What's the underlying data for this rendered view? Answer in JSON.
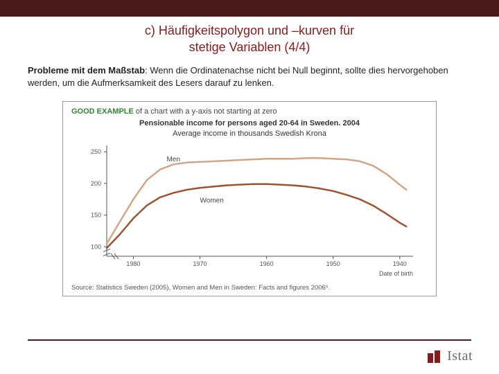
{
  "slide": {
    "title_line1": "c) Häufigkeitspolygon und –kurven für",
    "title_line2": "stetige Variablen     (4/4)",
    "body_lead": "Probleme mit dem Maßstab",
    "body_rest": ": Wenn die Ordinatenachse nicht bei Null beginnt, sollte dies hervorgehoben werden, um die Aufmerksamkeit des Lesers darauf zu lenken."
  },
  "figure": {
    "header_good": "GOOD EXAMPLE",
    "header_rest": " of a chart with a y-axis not starting at zero",
    "subtitle_1": "Pensionable income for persons aged 20-64 in Sweden. 2004",
    "subtitle_2": "Average income in thousands Swedish Krona",
    "source": "Source: Statistics Sweden (2005), Women and Men in Sweden: Facts and figures 2006⁶.",
    "chart": {
      "type": "line",
      "xlabel": "Date of birth",
      "xticks": [
        1980,
        1970,
        1960,
        1950,
        1940
      ],
      "xlim": [
        1984,
        1938
      ],
      "yticks": [
        100,
        150,
        200,
        250
      ],
      "ylim_visible": [
        85,
        260
      ],
      "axis_color": "#555555",
      "grid_color": "#d0d0d0",
      "tick_fontsize": 9,
      "label_fontsize": 9,
      "series": [
        {
          "name": "Men",
          "color": "#d4a583",
          "line_width": 2.5,
          "label_x": 1975,
          "label_y": 235,
          "points": [
            [
              1984,
              105
            ],
            [
              1982,
              140
            ],
            [
              1980,
              175
            ],
            [
              1978,
              205
            ],
            [
              1976,
              222
            ],
            [
              1974,
              230
            ],
            [
              1972,
              233
            ],
            [
              1970,
              234
            ],
            [
              1968,
              235
            ],
            [
              1966,
              236
            ],
            [
              1964,
              237
            ],
            [
              1962,
              238
            ],
            [
              1960,
              239
            ],
            [
              1958,
              239
            ],
            [
              1956,
              239
            ],
            [
              1954,
              240
            ],
            [
              1952,
              240
            ],
            [
              1950,
              239
            ],
            [
              1948,
              238
            ],
            [
              1946,
              235
            ],
            [
              1944,
              228
            ],
            [
              1942,
              215
            ],
            [
              1940,
              198
            ],
            [
              1939,
              190
            ]
          ]
        },
        {
          "name": "Women",
          "color": "#a0522d",
          "line_width": 2.5,
          "label_x": 1970,
          "label_y": 170,
          "points": [
            [
              1984,
              98
            ],
            [
              1982,
              120
            ],
            [
              1980,
              145
            ],
            [
              1978,
              165
            ],
            [
              1976,
              178
            ],
            [
              1974,
              185
            ],
            [
              1972,
              190
            ],
            [
              1970,
              193
            ],
            [
              1968,
              195
            ],
            [
              1966,
              197
            ],
            [
              1964,
              198
            ],
            [
              1962,
              199
            ],
            [
              1960,
              199
            ],
            [
              1958,
              198
            ],
            [
              1956,
              197
            ],
            [
              1954,
              195
            ],
            [
              1952,
              192
            ],
            [
              1950,
              188
            ],
            [
              1948,
              182
            ],
            [
              1946,
              175
            ],
            [
              1944,
              165
            ],
            [
              1942,
              152
            ],
            [
              1940,
              138
            ],
            [
              1939,
              132
            ]
          ]
        }
      ],
      "axis_break": {
        "y_at": 90
      }
    }
  },
  "footer": {
    "logo_text": "Istat",
    "logo_color_accent": "#8b1a1a",
    "logo_color_text": "#6a6a6a"
  },
  "colors": {
    "top_bar": "#4a1a1a",
    "title": "#8b1a1a",
    "rule": "#4a1a1a"
  }
}
